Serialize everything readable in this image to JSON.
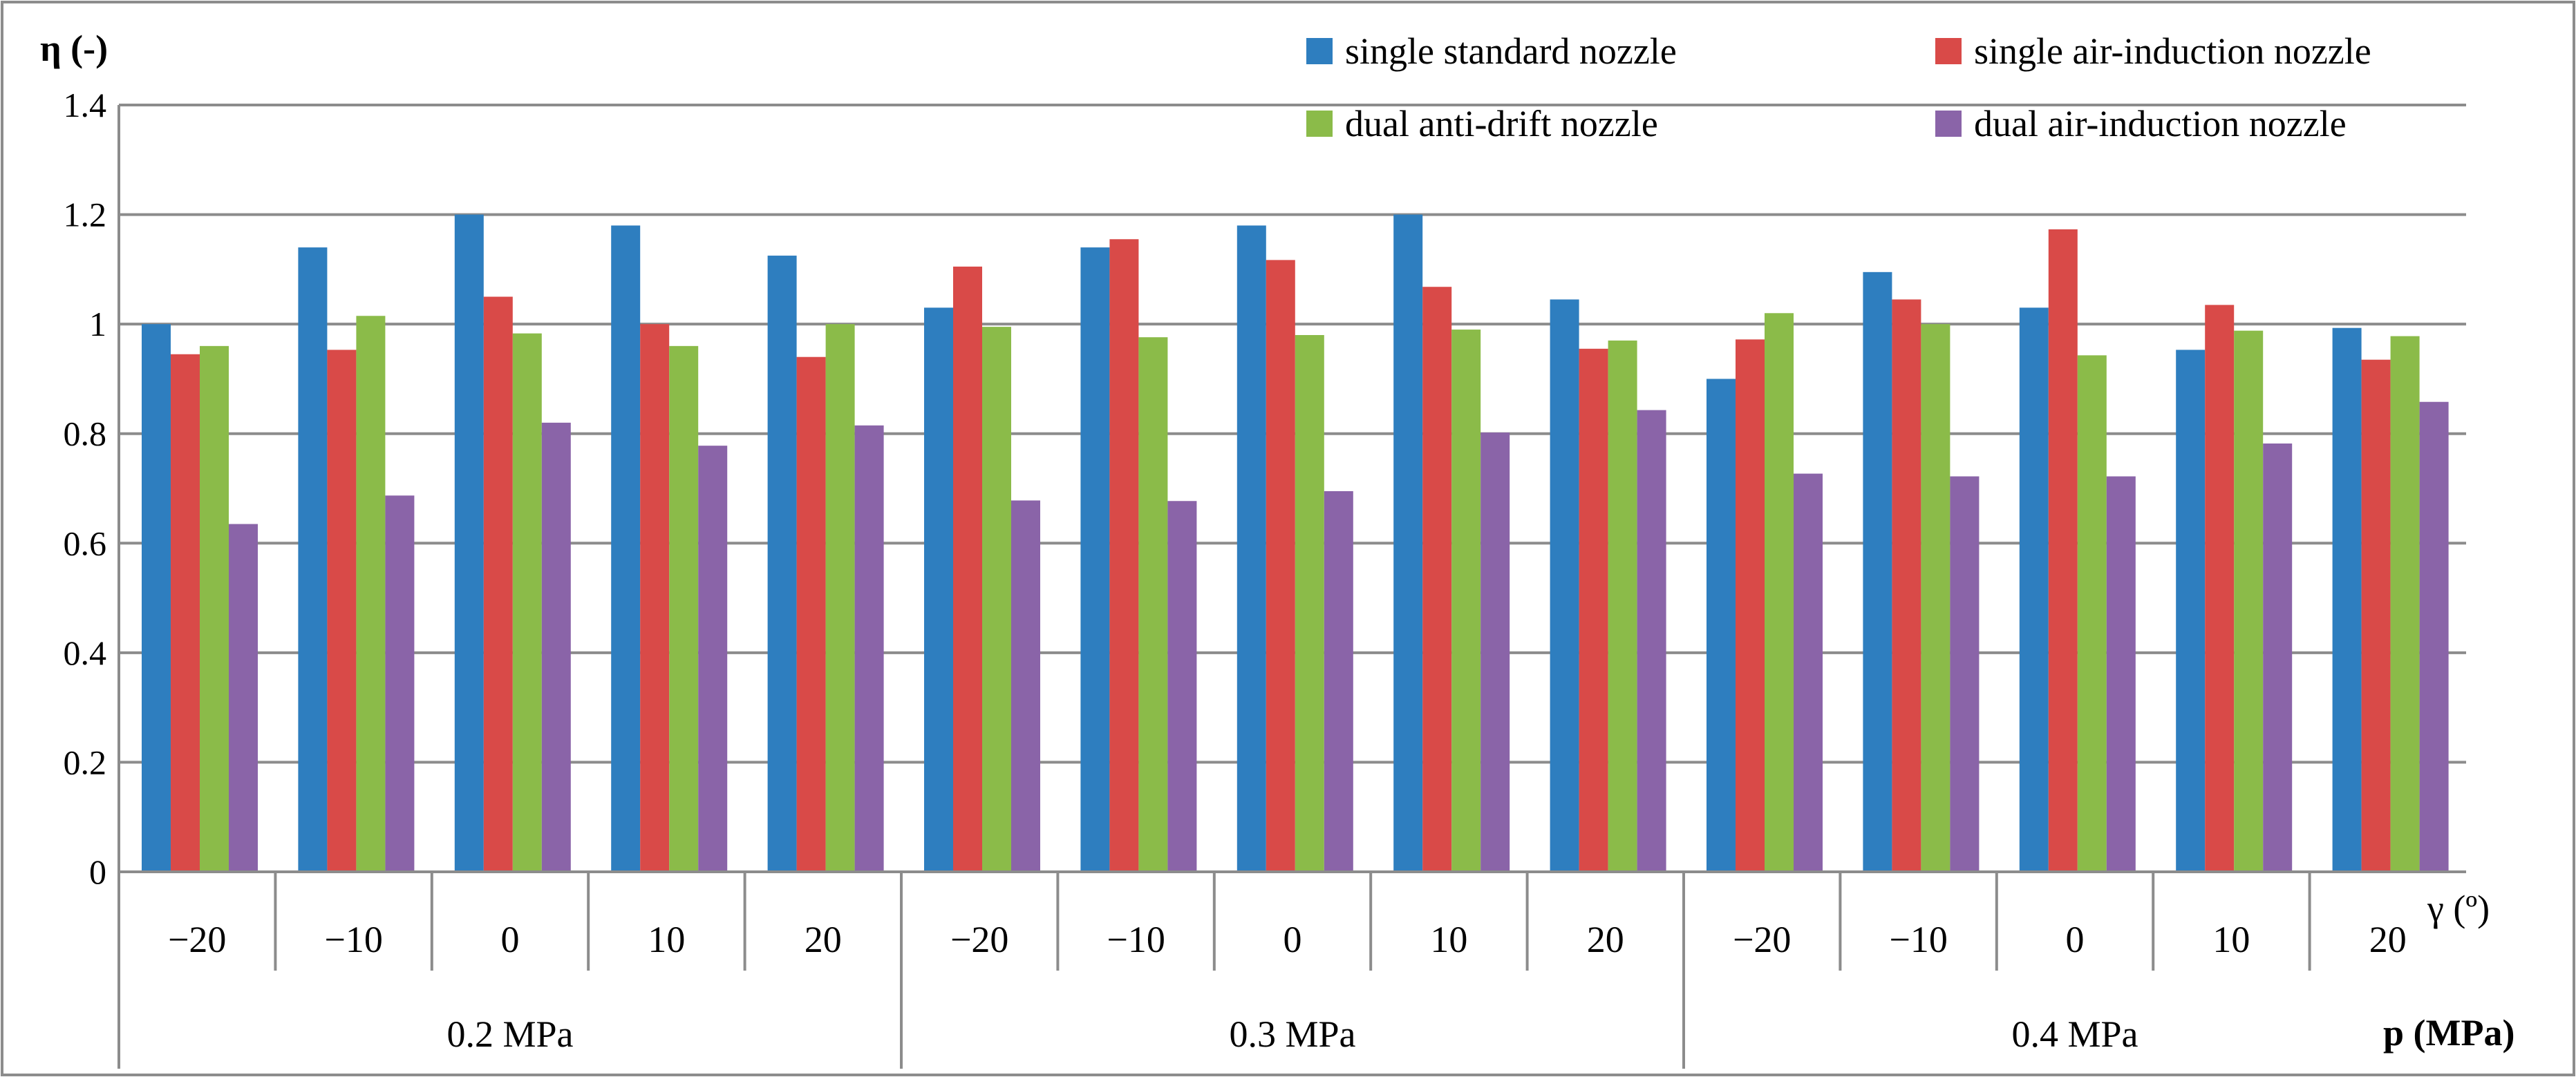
{
  "chart_data": {
    "type": "bar",
    "ylabel": "η (-)",
    "xlabel_angle": "γ (º)",
    "xlabel_pressure": "p (MPa)",
    "ylim": [
      0,
      1.4
    ],
    "yticks": [
      "0",
      "0.2",
      "0.4",
      "0.6",
      "0.8",
      "1",
      "1.2",
      "1.4"
    ],
    "groups": [
      {
        "label": "0.2 MPa",
        "categories": [
          "−20",
          "−10",
          "0",
          "10",
          "20"
        ]
      },
      {
        "label": "0.3 MPa",
        "categories": [
          "−20",
          "−10",
          "0",
          "10",
          "20"
        ]
      },
      {
        "label": "0.4 MPa",
        "categories": [
          "−20",
          "−10",
          "0",
          "10",
          "20"
        ]
      }
    ],
    "series": [
      {
        "name": "single standard nozzle",
        "color": "#2e7ebf",
        "values": [
          1.0,
          1.14,
          1.2,
          1.18,
          1.125,
          1.03,
          1.14,
          1.18,
          1.2,
          1.045,
          0.9,
          1.095,
          1.03,
          0.953,
          0.993
        ]
      },
      {
        "name": "single air-induction nozzle",
        "color": "#d94a48",
        "values": [
          0.945,
          0.953,
          1.05,
          1.0,
          0.94,
          1.105,
          1.155,
          1.117,
          1.068,
          0.955,
          0.972,
          1.045,
          1.173,
          1.035,
          0.935
        ]
      },
      {
        "name": "dual anti-drift nozzle",
        "color": "#8bbb49",
        "values": [
          0.96,
          1.015,
          0.983,
          0.96,
          1.0,
          0.995,
          0.976,
          0.98,
          0.99,
          0.97,
          1.02,
          1.0,
          0.943,
          0.988,
          0.978
        ]
      },
      {
        "name": "dual air-induction nozzle",
        "color": "#8a64a8",
        "values": [
          0.635,
          0.687,
          0.82,
          0.778,
          0.815,
          0.678,
          0.677,
          0.695,
          0.802,
          0.843,
          0.727,
          0.722,
          0.722,
          0.782,
          0.858
        ]
      }
    ]
  }
}
